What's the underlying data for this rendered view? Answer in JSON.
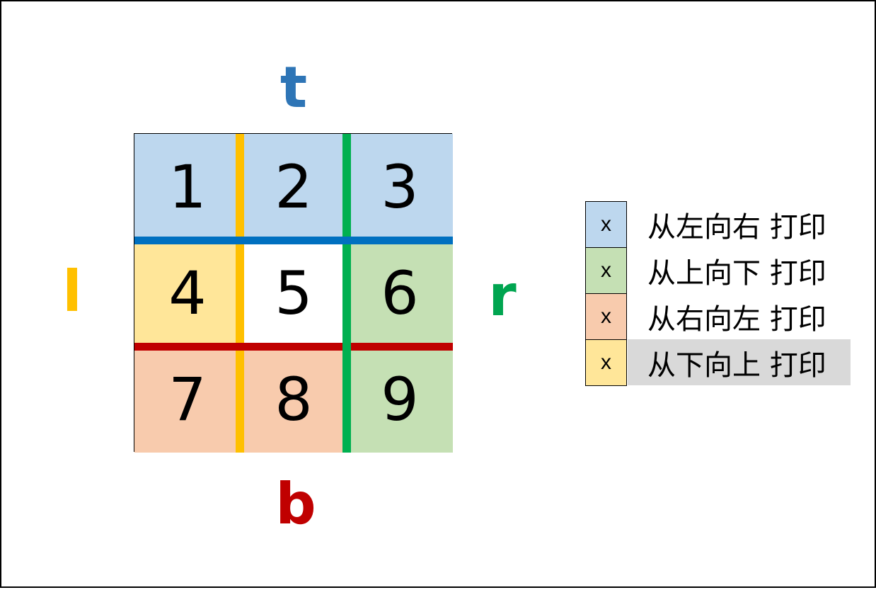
{
  "labels": {
    "top": {
      "text": "t",
      "color": "#2e75b6"
    },
    "left": {
      "text": "l",
      "color": "#ffc000"
    },
    "right": {
      "text": "r",
      "color": "#00a550"
    },
    "bottom": {
      "text": "b",
      "color": "#c00000"
    }
  },
  "grid": {
    "cells": [
      {
        "value": "1",
        "fill": "#bdd7ee"
      },
      {
        "value": "2",
        "fill": "#bdd7ee"
      },
      {
        "value": "3",
        "fill": "#bdd7ee"
      },
      {
        "value": "4",
        "fill": "#ffe699"
      },
      {
        "value": "5",
        "fill": "#ffffff"
      },
      {
        "value": "6",
        "fill": "#c5e0b4"
      },
      {
        "value": "7",
        "fill": "#f8cbad"
      },
      {
        "value": "8",
        "fill": "#f8cbad"
      },
      {
        "value": "9",
        "fill": "#c5e0b4"
      }
    ],
    "line_colors": {
      "left_to_right": "#0070c0",
      "top_to_bottom": "#00b050",
      "right_to_left": "#c00000",
      "bottom_to_top": "#ffc000"
    }
  },
  "legend": {
    "items": [
      {
        "marker": "x",
        "text": "从左向右 打印",
        "fill": "#bdd7ee",
        "highlighted": false
      },
      {
        "marker": "x",
        "text": "从上向下 打印",
        "fill": "#c5e0b4",
        "highlighted": false
      },
      {
        "marker": "x",
        "text": "从右向左 打印",
        "fill": "#f8cbad",
        "highlighted": false
      },
      {
        "marker": "x",
        "text": "从下向上 打印",
        "fill": "#ffe699",
        "highlighted": true
      }
    ]
  }
}
